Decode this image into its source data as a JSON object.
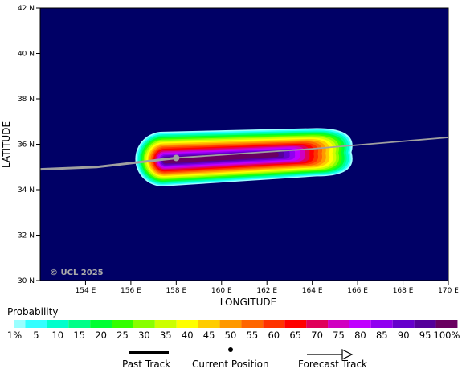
{
  "map": {
    "ylabel": "LATITUDE",
    "xlabel": "LONGITUDE",
    "lat_ticks": [
      "42 N",
      "40 N",
      "38 N",
      "36 N",
      "34 N",
      "32 N",
      "30 N"
    ],
    "lon_ticks": [
      "154 E",
      "156 E",
      "158 E",
      "160 E",
      "162 E",
      "164 E",
      "166 E",
      "168 E",
      "170 E"
    ],
    "copyright": "© UCL 2025",
    "ocean_color": "#000066",
    "track_color": "#a0a0a0",
    "past_track": [
      [
        152.0,
        34.9
      ],
      [
        154.5,
        35.0
      ],
      [
        158.0,
        35.4
      ]
    ],
    "forecast_track": [
      [
        158.0,
        35.4
      ],
      [
        164.0,
        35.8
      ],
      [
        170.0,
        36.3
      ]
    ],
    "current_position": [
      158.0,
      35.4
    ]
  },
  "legend": {
    "title": "Probability",
    "labels": [
      "1%",
      "5",
      "10",
      "15",
      "20",
      "25",
      "30",
      "35",
      "40",
      "45",
      "50",
      "55",
      "60",
      "65",
      "70",
      "75",
      "80",
      "85",
      "90",
      "95",
      "100%"
    ],
    "colors": [
      "#99ffff",
      "#33ffff",
      "#00ffcc",
      "#00ff88",
      "#00ff33",
      "#33ff00",
      "#88ff00",
      "#ccff00",
      "#ffff00",
      "#ffcc00",
      "#ff9900",
      "#ff6600",
      "#ff3300",
      "#ff0000",
      "#e0005a",
      "#d000c0",
      "#c000ff",
      "#9000f0",
      "#6600cc",
      "#55009a",
      "#6a0060"
    ]
  },
  "key": {
    "past": "Past Track",
    "current": "Current Position",
    "forecast": "Forecast Track"
  }
}
